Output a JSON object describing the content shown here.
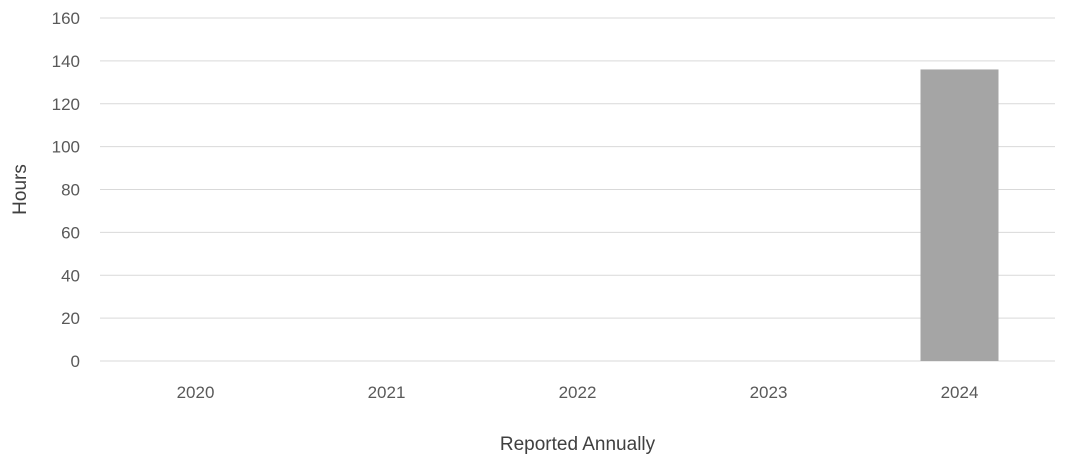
{
  "chart_data": {
    "type": "bar",
    "title": "",
    "xlabel": "Reported Annually",
    "ylabel": "Hours",
    "categories": [
      "2020",
      "2021",
      "2022",
      "2023",
      "2024"
    ],
    "values": [
      0,
      0,
      0,
      0,
      136
    ],
    "ylim": [
      0,
      160
    ],
    "yticks": [
      "0",
      "20",
      "40",
      "60",
      "80",
      "100",
      "120",
      "140",
      "160"
    ],
    "grid": true,
    "legend": "none",
    "bar_color": "#a5a5a5",
    "gridline_color": "#d9d9d9"
  }
}
